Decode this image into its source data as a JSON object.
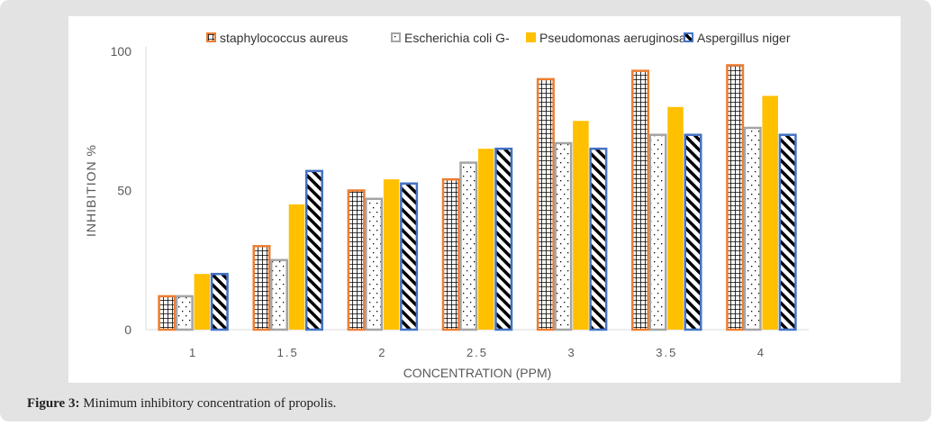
{
  "caption": {
    "label": "Figure 3:",
    "text": " Minimum inhibitory concentration of propolis."
  },
  "chart_data": {
    "type": "bar",
    "title": "",
    "xlabel": "CONCENTRATION (PPM)",
    "ylabel": "INHIBITION %",
    "ylim": [
      0,
      100
    ],
    "yticks": [
      "0",
      "50",
      "100"
    ],
    "categories": [
      "1",
      "1.5",
      "2",
      "2.5",
      "3",
      "3.5",
      "4"
    ],
    "legend_position": "top-right",
    "series": [
      {
        "name": "staphylococcus   aureus",
        "values": [
          12,
          30,
          50,
          54,
          90,
          93,
          95
        ],
        "color": "#ed7d31",
        "pattern": "grid"
      },
      {
        "name": "Escherichia coli G-",
        "values": [
          12,
          25,
          47,
          60,
          67,
          70,
          72.5
        ],
        "color": "#a5a5a5",
        "pattern": "dots"
      },
      {
        "name": "Pseudomonas aeruginosa",
        "values": [
          20,
          45,
          54,
          65,
          75,
          80,
          84
        ],
        "color": "#ffc000",
        "pattern": "solid"
      },
      {
        "name": "Aspergillus niger",
        "values": [
          20,
          57,
          52.5,
          65,
          65,
          70,
          70
        ],
        "color": "#4472c4",
        "pattern": "diag"
      }
    ]
  }
}
